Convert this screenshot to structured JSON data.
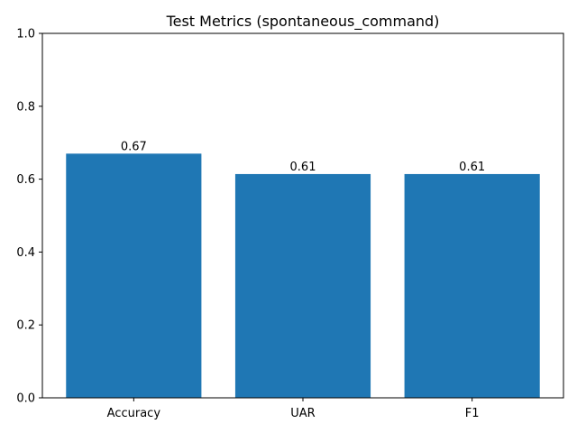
{
  "chart_data": {
    "type": "bar",
    "title": "Test Metrics (spontaneous_command)",
    "xlabel": "",
    "ylabel": "",
    "categories": [
      "Accuracy",
      "UAR",
      "F1"
    ],
    "values": [
      0.67,
      0.614,
      0.614
    ],
    "data_labels": [
      "0.67",
      "0.61",
      "0.61"
    ],
    "ylim": [
      0,
      1.0
    ],
    "yticks": [
      0.0,
      0.2,
      0.4,
      0.6,
      0.8,
      1.0
    ],
    "ytick_labels": [
      "0.0",
      "0.2",
      "0.4",
      "0.6",
      "0.8",
      "1.0"
    ],
    "grid": false,
    "bar_color": "#1f77b4"
  }
}
